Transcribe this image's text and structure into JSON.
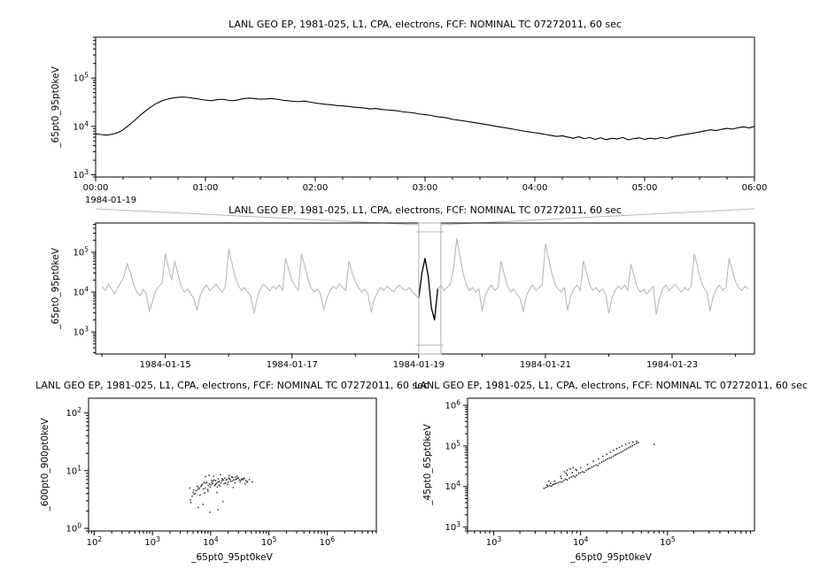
{
  "window": {
    "background": "#ffffff"
  },
  "decorations": {
    "connector_color": "#b8b8b8",
    "axis_color": "#000000"
  },
  "chart_data": [
    {
      "id": "top",
      "type": "line",
      "title": "LANL GEO EP, 1981-025, L1, CPA, electrons, FCF: NOMINAL TC 07272011, 60 sec",
      "ylabel": "_65pt0_95pt0keV",
      "context_label": "1984-01-19",
      "xlim": [
        0,
        6
      ],
      "ylim": [
        900,
        700000
      ],
      "y_tick_exponents": [
        3,
        4,
        5
      ],
      "x_ticks": [
        {
          "v": 0,
          "label": "00:00"
        },
        {
          "v": 1,
          "label": "01:00"
        },
        {
          "v": 2,
          "label": "02:00"
        },
        {
          "v": 3,
          "label": "03:00"
        },
        {
          "v": 4,
          "label": "04:00"
        },
        {
          "v": 5,
          "label": "05:00"
        },
        {
          "v": 6,
          "label": "06:00"
        }
      ],
      "x_minor_step": 0.25,
      "x_start": 0,
      "x_step": 0.05,
      "line_color": "#000000",
      "values": [
        7000,
        6800,
        6600,
        6900,
        7400,
        8500,
        10500,
        13000,
        16500,
        20500,
        25000,
        29500,
        33500,
        36500,
        38500,
        40000,
        40500,
        39500,
        38000,
        36500,
        35000,
        34000,
        35500,
        36500,
        35000,
        34000,
        35500,
        37500,
        38500,
        37500,
        36500,
        37000,
        38000,
        36500,
        35000,
        34000,
        33000,
        32500,
        33500,
        32000,
        30500,
        29500,
        28500,
        28000,
        27000,
        26500,
        26000,
        25000,
        24500,
        24000,
        23000,
        23500,
        22500,
        22000,
        21500,
        21000,
        20000,
        19500,
        19000,
        18000,
        17500,
        17000,
        16000,
        15500,
        15000,
        14000,
        13500,
        13000,
        12500,
        12000,
        11500,
        11000,
        10500,
        10000,
        9600,
        9200,
        8800,
        8400,
        8000,
        7700,
        7400,
        7100,
        6800,
        6500,
        6200,
        6400,
        6000,
        5700,
        6100,
        5600,
        5900,
        5400,
        5800,
        5300,
        5700,
        5500,
        5900,
        5300,
        5600,
        5800,
        5400,
        5700,
        5500,
        5900,
        5600,
        6100,
        6400,
        6700,
        7000,
        7300,
        7700,
        8100,
        8500,
        8200,
        8700,
        9100,
        8800,
        9400,
        9800,
        9300,
        10000
      ]
    },
    {
      "id": "context",
      "type": "line",
      "title": "LANL GEO EP, 1981-025, L1, CPA, electrons, FCF: NOMINAL TC 07272011, 60 sec",
      "ylabel": "_65pt0_95pt0keV",
      "xlim": [
        13.9,
        24.3
      ],
      "ylim": [
        280,
        540000
      ],
      "y_tick_exponents": [
        3,
        4,
        5
      ],
      "x_ticks": [
        {
          "v": 15,
          "label": "1984-01-15"
        },
        {
          "v": 17,
          "label": "1984-01-17"
        },
        {
          "v": 19,
          "label": "1984-01-19"
        },
        {
          "v": 21,
          "label": "1984-01-21"
        },
        {
          "v": 23,
          "label": "1984-01-23"
        }
      ],
      "x_minor_step": 1,
      "x_start": 14.0,
      "x_step": 0.05,
      "line_color": "#b8b8b8",
      "highlight": {
        "start": 100,
        "end": 106,
        "color": "#000000"
      },
      "selection": {
        "x0": 19.0,
        "x1": 19.35,
        "color": "#b0b0b0"
      },
      "values": [
        14000,
        11000,
        16000,
        12000,
        9000,
        13000,
        18000,
        25000,
        52000,
        30000,
        15000,
        10000,
        8000,
        12000,
        9000,
        3200,
        6000,
        11000,
        14000,
        17000,
        90000,
        40000,
        20000,
        60000,
        28000,
        14000,
        10000,
        12000,
        9000,
        7000,
        3500,
        8000,
        12000,
        15000,
        11000,
        13000,
        16000,
        12000,
        10000,
        14000,
        120000,
        55000,
        25000,
        15000,
        11000,
        13000,
        10000,
        8000,
        3000,
        7000,
        12000,
        16000,
        13000,
        11000,
        14000,
        12000,
        15000,
        11000,
        70000,
        35000,
        20000,
        14000,
        11000,
        90000,
        45000,
        22000,
        13000,
        10000,
        12000,
        9000,
        3600,
        7000,
        11000,
        14000,
        12000,
        16000,
        13000,
        11000,
        60000,
        30000,
        18000,
        13000,
        10000,
        12000,
        9000,
        3100,
        6500,
        10000,
        13000,
        11000,
        14000,
        12000,
        10000,
        13000,
        15000,
        12000,
        11000,
        13000,
        10000,
        8500,
        7000,
        30000,
        70000,
        25000,
        4000,
        2000,
        12000,
        15000,
        11000,
        13000,
        16000,
        40000,
        220000,
        80000,
        30000,
        15000,
        11000,
        13000,
        10000,
        12000,
        3400,
        8000,
        12000,
        15000,
        11000,
        13000,
        60000,
        28000,
        14000,
        10000,
        12000,
        9000,
        7000,
        3200,
        8000,
        12000,
        15000,
        11000,
        13000,
        16000,
        160000,
        70000,
        30000,
        16000,
        12000,
        10000,
        13000,
        3500,
        8000,
        12000,
        15000,
        11000,
        60000,
        30000,
        15000,
        11000,
        13000,
        10000,
        12000,
        9000,
        3000,
        7000,
        11000,
        14000,
        12000,
        15000,
        11000,
        50000,
        25000,
        13000,
        10000,
        12000,
        9000,
        11000,
        14000,
        2800,
        7000,
        12000,
        15000,
        11000,
        13000,
        16000,
        12000,
        10000,
        13000,
        11000,
        14000,
        90000,
        45000,
        20000,
        13000,
        10000,
        3300,
        8000,
        12000,
        15000,
        11000,
        13000,
        70000,
        35000,
        18000,
        13000,
        11000,
        14000,
        12000
      ]
    },
    {
      "id": "scatter_left",
      "type": "scatter",
      "title": "LANL GEO EP, 1981-025, L1, CPA, electrons, FCF: NOMINAL TC 07272011, 60 sec",
      "xlabel": "_65pt0_95pt0keV",
      "ylabel": "_600pt0_900pt0keV",
      "xlim": [
        80,
        7000000
      ],
      "ylim": [
        0.9,
        180
      ],
      "x_tick_exponents": [
        2,
        3,
        4,
        5,
        6
      ],
      "y_tick_exponents": [
        0,
        1,
        2
      ],
      "dot_color": "#3c3c3c",
      "points": [
        [
          5000,
          4.2
        ],
        [
          6200,
          5.1
        ],
        [
          7500,
          4.8
        ],
        [
          8300,
          6.0
        ],
        [
          9100,
          5.5
        ],
        [
          10500,
          6.2
        ],
        [
          12000,
          5.8
        ],
        [
          14000,
          6.5
        ],
        [
          16000,
          7.0
        ],
        [
          18500,
          6.8
        ],
        [
          21000,
          7.2
        ],
        [
          25000,
          6.9
        ],
        [
          30000,
          7.5
        ],
        [
          35000,
          7.1
        ],
        [
          40000,
          6.7
        ],
        [
          4800,
          3.6
        ],
        [
          5600,
          4.5
        ],
        [
          6800,
          5.3
        ],
        [
          7900,
          4.1
        ],
        [
          9500,
          5.9
        ],
        [
          11000,
          6.6
        ],
        [
          13000,
          5.2
        ],
        [
          15000,
          6.1
        ],
        [
          17500,
          7.4
        ],
        [
          20000,
          6.3
        ],
        [
          23000,
          7.8
        ],
        [
          27000,
          7.0
        ],
        [
          32000,
          6.4
        ],
        [
          38000,
          7.3
        ],
        [
          4500,
          3.1
        ],
        [
          5200,
          3.9
        ],
        [
          6000,
          4.7
        ],
        [
          7000,
          5.6
        ],
        [
          8000,
          5.0
        ],
        [
          9000,
          4.4
        ],
        [
          10000,
          5.7
        ],
        [
          11500,
          6.9
        ],
        [
          12500,
          6.0
        ],
        [
          13500,
          7.2
        ],
        [
          14500,
          5.4
        ],
        [
          15500,
          6.6
        ],
        [
          17000,
          5.9
        ],
        [
          19000,
          7.1
        ],
        [
          22000,
          6.5
        ],
        [
          24000,
          7.6
        ],
        [
          26000,
          6.2
        ],
        [
          29000,
          7.4
        ],
        [
          33000,
          6.8
        ],
        [
          36000,
          7.0
        ],
        [
          42000,
          6.3
        ],
        [
          4600,
          2.8
        ],
        [
          5400,
          4.0
        ],
        [
          6400,
          4.9
        ],
        [
          7200,
          5.8
        ],
        [
          8600,
          6.3
        ],
        [
          9800,
          5.2
        ],
        [
          10800,
          6.0
        ],
        [
          12200,
          6.7
        ],
        [
          13800,
          5.6
        ],
        [
          15800,
          7.3
        ],
        [
          18000,
          6.1
        ],
        [
          20500,
          7.5
        ],
        [
          23500,
          6.6
        ],
        [
          28000,
          7.2
        ],
        [
          31000,
          6.9
        ],
        [
          37000,
          7.4
        ],
        [
          43000,
          6.5
        ],
        [
          5100,
          4.6
        ],
        [
          5900,
          5.4
        ],
        [
          6600,
          3.8
        ],
        [
          7700,
          6.2
        ],
        [
          8900,
          4.7
        ],
        [
          10300,
          6.8
        ],
        [
          11800,
          5.5
        ],
        [
          13200,
          6.3
        ],
        [
          16500,
          6.9
        ],
        [
          19500,
          5.8
        ],
        [
          21500,
          7.0
        ],
        [
          26500,
          7.7
        ],
        [
          34000,
          7.2
        ],
        [
          6100,
          2.3
        ],
        [
          7400,
          2.6
        ],
        [
          12800,
          4.2
        ],
        [
          4400,
          5.0
        ],
        [
          8100,
          7.9
        ],
        [
          9400,
          8.3
        ],
        [
          11200,
          8.0
        ],
        [
          14800,
          8.5
        ],
        [
          20800,
          8.2
        ],
        [
          28500,
          8.0
        ],
        [
          16200,
          2.9
        ],
        [
          24500,
          5.1
        ],
        [
          39000,
          5.9
        ],
        [
          46000,
          7.0
        ],
        [
          52000,
          6.4
        ],
        [
          9700,
          1.9
        ],
        [
          13400,
          2.1
        ]
      ]
    },
    {
      "id": "scatter_right",
      "type": "scatter",
      "title": "LANL GEO EP, 1981-025, L1, CPA, electrons, FCF: NOMINAL TC 07272011, 60 sec",
      "xlabel": "_65pt0_95pt0keV",
      "ylabel": "_45pt0_65pt0keV",
      "xlim": [
        500,
        1000000
      ],
      "ylim": [
        800,
        1500000
      ],
      "x_tick_exponents": [
        3,
        4,
        5
      ],
      "y_tick_exponents": [
        3,
        4,
        5,
        6
      ],
      "dot_color": "#2a2a2a",
      "points": [
        [
          4000,
          9500
        ],
        [
          4200,
          10000
        ],
        [
          4400,
          10500
        ],
        [
          4600,
          10200
        ],
        [
          4800,
          11000
        ],
        [
          5000,
          11500
        ],
        [
          5200,
          12000
        ],
        [
          5500,
          12500
        ],
        [
          5800,
          13000
        ],
        [
          6100,
          12800
        ],
        [
          6400,
          14000
        ],
        [
          6700,
          15000
        ],
        [
          7000,
          14500
        ],
        [
          7400,
          16000
        ],
        [
          7800,
          17000
        ],
        [
          8200,
          18000
        ],
        [
          8600,
          17500
        ],
        [
          9000,
          19000
        ],
        [
          9500,
          21000
        ],
        [
          10000,
          22000
        ],
        [
          10500,
          23000
        ],
        [
          11000,
          22500
        ],
        [
          11600,
          25000
        ],
        [
          12200,
          27000
        ],
        [
          12800,
          28000
        ],
        [
          13500,
          30000
        ],
        [
          14200,
          32000
        ],
        [
          15000,
          34000
        ],
        [
          15800,
          33000
        ],
        [
          16600,
          37000
        ],
        [
          17500,
          40000
        ],
        [
          18400,
          42000
        ],
        [
          19400,
          45000
        ],
        [
          20400,
          48000
        ],
        [
          21500,
          50000
        ],
        [
          22600,
          52000
        ],
        [
          23800,
          56000
        ],
        [
          25000,
          60000
        ],
        [
          26300,
          63000
        ],
        [
          27700,
          67000
        ],
        [
          29100,
          70000
        ],
        [
          30600,
          75000
        ],
        [
          32200,
          80000
        ],
        [
          33900,
          85000
        ],
        [
          35700,
          90000
        ],
        [
          37500,
          95000
        ],
        [
          39500,
          100000
        ],
        [
          41500,
          108000
        ],
        [
          43700,
          115000
        ],
        [
          46000,
          120000
        ],
        [
          44000,
          130000
        ],
        [
          40000,
          125000
        ],
        [
          36000,
          118000
        ],
        [
          33000,
          110000
        ],
        [
          30000,
          100000
        ],
        [
          28000,
          92000
        ],
        [
          26000,
          85000
        ],
        [
          24000,
          78000
        ],
        [
          22000,
          70000
        ],
        [
          20000,
          62000
        ],
        [
          18000,
          55000
        ],
        [
          16000,
          48000
        ],
        [
          14000,
          42000
        ],
        [
          12000,
          35000
        ],
        [
          10000,
          29000
        ],
        [
          9000,
          25000
        ],
        [
          8000,
          22000
        ],
        [
          7000,
          19000
        ],
        [
          6000,
          16000
        ],
        [
          5000,
          13500
        ],
        [
          4500,
          12000
        ],
        [
          4100,
          10800
        ],
        [
          6500,
          23000
        ],
        [
          7000,
          25000
        ],
        [
          7600,
          27000
        ],
        [
          8200,
          29000
        ],
        [
          8800,
          26000
        ],
        [
          6800,
          21000
        ],
        [
          5900,
          18000
        ],
        [
          3800,
          9000
        ],
        [
          4300,
          13500
        ],
        [
          70000,
          110000
        ]
      ]
    }
  ]
}
